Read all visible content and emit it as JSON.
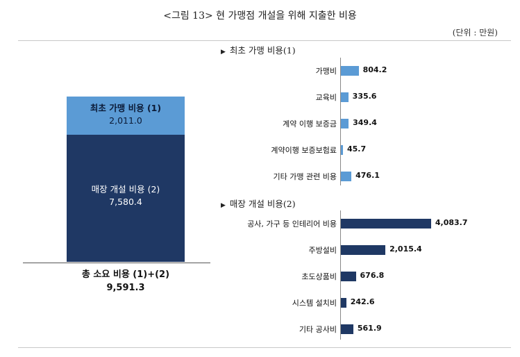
{
  "header": {
    "title": "<그림 13> 현 가맹점 개설을 위해 지출한 비용",
    "unit": "(단위 : 만원)"
  },
  "stacked": {
    "initial": {
      "label": "최초 가맹 비용 (1)",
      "value": "2,011.0"
    },
    "store": {
      "label": "매장 개설 비용 (2)",
      "value": "7,580.4"
    },
    "total": {
      "label": "총 소요 비용 (1)+(2)",
      "value": "9,591.3"
    }
  },
  "sections": {
    "initial": {
      "marker": "▶",
      "title": "최초 가맹 비용(1)"
    },
    "store": {
      "marker": "▶",
      "title": "매장 개설 비용(2)"
    }
  },
  "colors": {
    "initial": "#5b9bd5",
    "store": "#1f3864"
  },
  "chart_data": [
    {
      "type": "bar",
      "orientation": "stacked-column",
      "title": "",
      "series": [
        {
          "name": "최초 가맹 비용 (1)",
          "values": [
            2011.0
          ]
        },
        {
          "name": "매장 개설 비용 (2)",
          "values": [
            7580.4
          ]
        }
      ],
      "total": 9591.3
    },
    {
      "type": "bar",
      "orientation": "horizontal",
      "title": "최초 가맹 비용(1)",
      "categories": [
        "가맹비",
        "교육비",
        "계약 이행 보증금",
        "계약이행 보증보험료",
        "기타 가맹 관련 비용"
      ],
      "values": [
        804.2,
        335.6,
        349.4,
        45.7,
        476.1
      ],
      "labels": [
        "804.2",
        "335.6",
        "349.4",
        "45.7",
        "476.1"
      ],
      "color": "#5b9bd5"
    },
    {
      "type": "bar",
      "orientation": "horizontal",
      "title": "매장 개설 비용(2)",
      "categories": [
        "공사, 가구 등 인테리어 비용",
        "주방설비",
        "초도상품비",
        "시스템 설치비",
        "기타 공사비"
      ],
      "values": [
        4083.7,
        2015.4,
        676.8,
        242.6,
        561.9
      ],
      "labels": [
        "4,083.7",
        "2,015.4",
        "676.8",
        "242.6",
        "561.9"
      ],
      "color": "#1f3864"
    }
  ]
}
